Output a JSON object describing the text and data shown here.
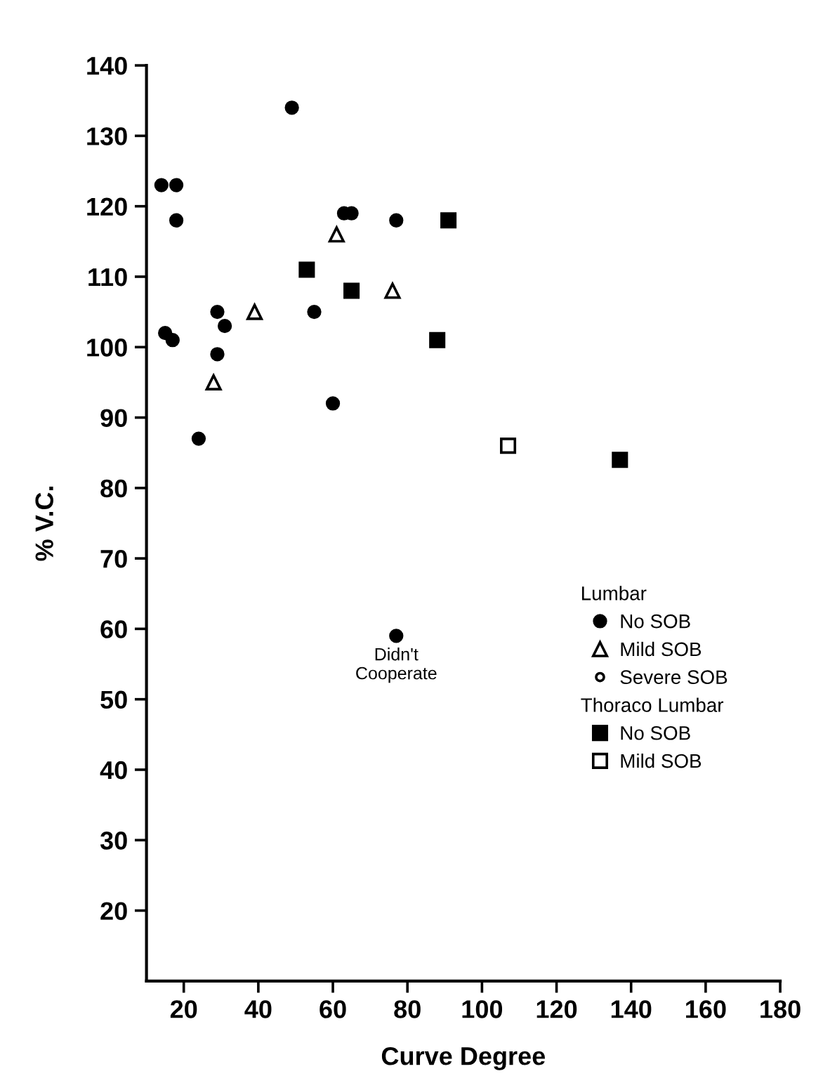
{
  "chart_data": {
    "type": "scatter",
    "xlabel": "Curve Degree",
    "ylabel": "% V.C.",
    "xlim": [
      10,
      180
    ],
    "ylim": [
      10,
      140
    ],
    "xticks": [
      20,
      40,
      60,
      80,
      100,
      120,
      140,
      160,
      180
    ],
    "yticks": [
      20,
      30,
      40,
      50,
      60,
      70,
      80,
      90,
      100,
      110,
      120,
      130,
      140
    ],
    "legend": "right",
    "series": [
      {
        "name": "No SOB",
        "color": "#000000",
        "marker": "circle",
        "x": [
          14,
          18,
          18,
          15,
          17,
          29,
          29,
          31,
          24,
          49,
          55,
          60,
          63,
          65,
          77,
          77
        ],
        "values": [
          123,
          123,
          118,
          102,
          101,
          105,
          99,
          103,
          87,
          134,
          105,
          92,
          119,
          119,
          118,
          59
        ]
      },
      {
        "name": "Mild SOB",
        "color": "#ffffff",
        "marker": "triangle",
        "x": [
          39,
          28,
          61,
          76
        ],
        "values": [
          105,
          95,
          116,
          108
        ]
      },
      {
        "name": "Severe SOB",
        "color": "#ffffff",
        "marker": "circle"
      },
      {
        "name": "No SOB",
        "color": "#000000",
        "marker": "square",
        "x": [
          53,
          65,
          91,
          88,
          137
        ],
        "values": [
          111,
          108,
          118,
          101,
          84
        ]
      },
      {
        "name": "Mild SOB",
        "color": "#ffffff",
        "marker": "square",
        "x": [
          107
        ],
        "values": [
          86
        ]
      }
    ],
    "annotations": [
      {
        "text": "Didn't\nCooperate",
        "x": 77,
        "y": 59
      },
      "Lumbar",
      "Thoraco Lumbar"
    ]
  }
}
